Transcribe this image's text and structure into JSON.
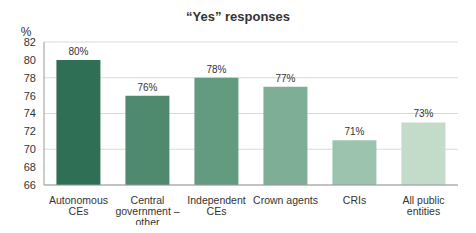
{
  "chart_data": {
    "type": "bar",
    "title": "“Yes” responses",
    "y_label": "%",
    "categories": [
      "Autonomous CEs",
      "Central government – other",
      "Independent CEs",
      "Crown agents",
      "CRIs",
      "All public entities"
    ],
    "values": [
      80,
      76,
      78,
      77,
      71,
      73
    ],
    "value_labels": [
      "80%",
      "76%",
      "78%",
      "77%",
      "71%",
      "73%"
    ],
    "colors": [
      "#2f6f55",
      "#4f8a6e",
      "#639b80",
      "#7fae97",
      "#9cc3ae",
      "#c3dcca"
    ],
    "ylim": [
      66,
      82
    ],
    "yticks": [
      66,
      68,
      70,
      72,
      74,
      76,
      78,
      80,
      82
    ],
    "grid": true,
    "data_labels": true
  }
}
